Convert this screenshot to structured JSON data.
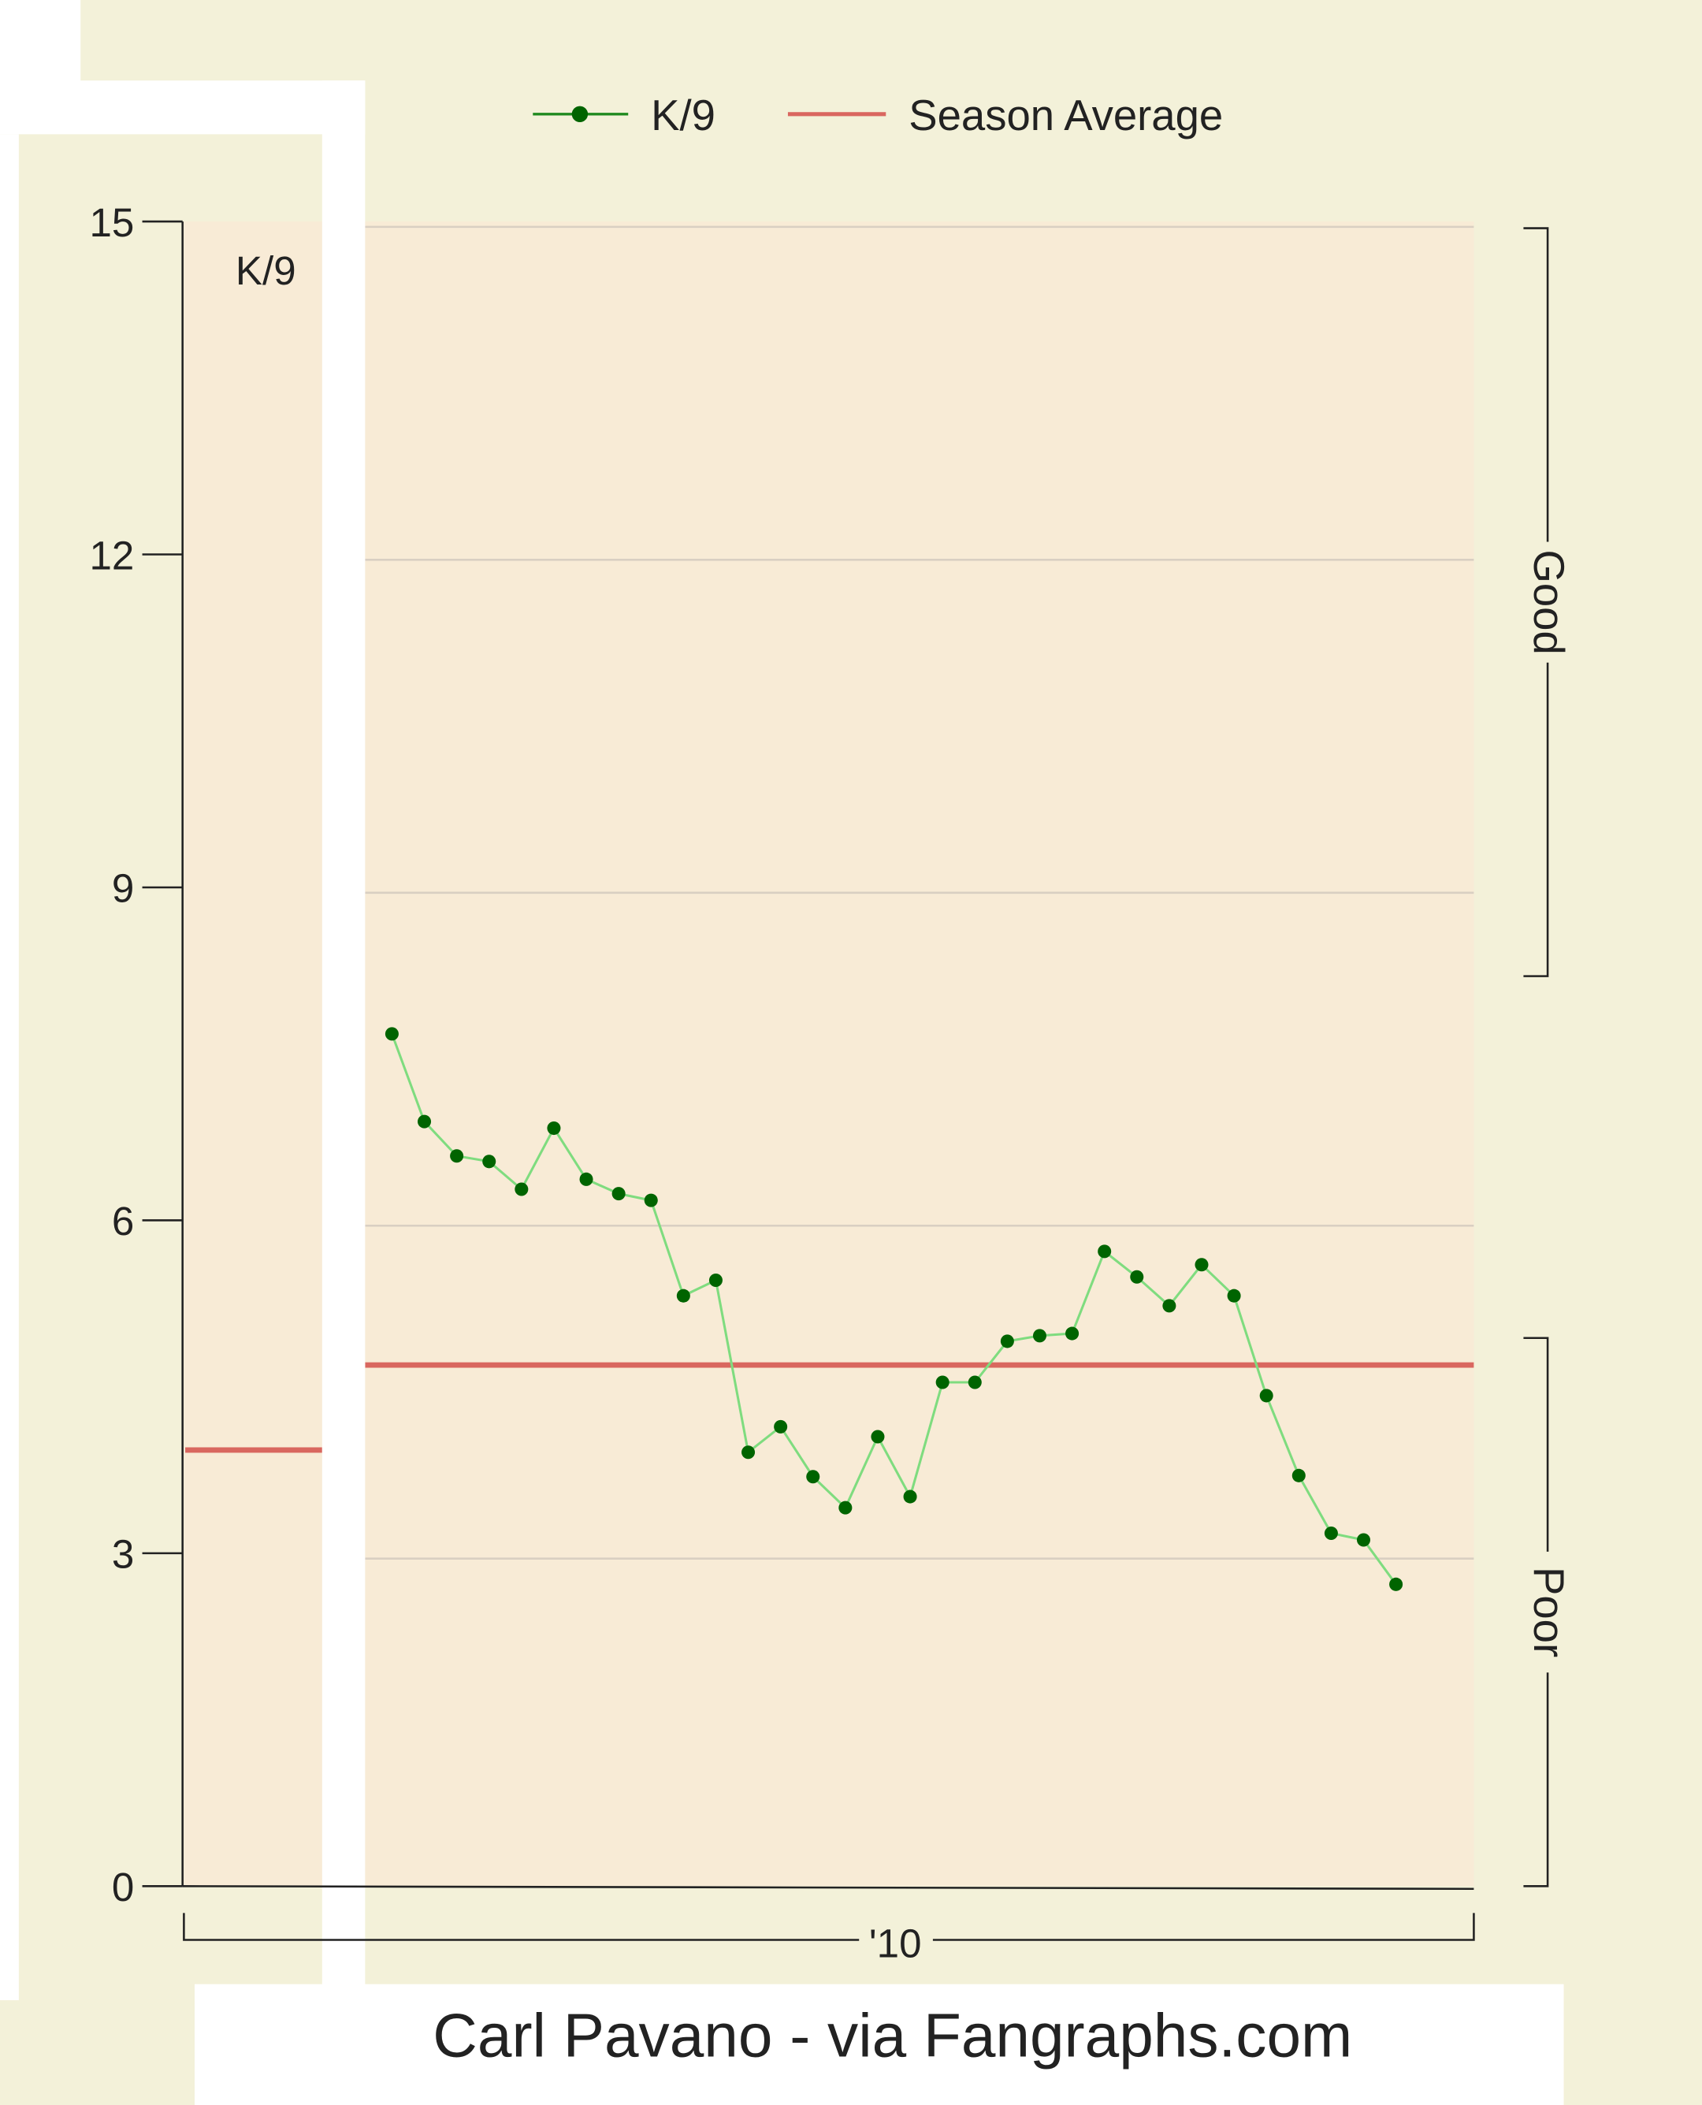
{
  "chart_data": {
    "type": "line",
    "legend": {
      "position": "top",
      "entries": [
        "K/9",
        "Season Average"
      ]
    },
    "ylabel_inset": "K/9",
    "ylim": [
      0,
      15
    ],
    "yticks": [
      "0",
      "3",
      "6",
      "9",
      "12",
      "15"
    ],
    "xtick_label": "'10",
    "grid": true,
    "series": [
      {
        "name": "K/9",
        "color": "#006400",
        "line_color": "#7fdc7f",
        "values": [
          7.68,
          6.89,
          6.58,
          6.53,
          6.28,
          6.83,
          6.37,
          6.24,
          6.18,
          5.32,
          5.46,
          3.91,
          4.14,
          3.69,
          3.41,
          4.05,
          3.51,
          4.54,
          4.54,
          4.91,
          4.96,
          4.98,
          5.72,
          5.49,
          5.23,
          5.6,
          5.32,
          4.42,
          3.7,
          3.18,
          3.12,
          2.72
        ]
      }
    ],
    "season_average": {
      "name": "Season Average",
      "value": 4.72,
      "color": "#d9675f"
    },
    "left_panel_line": {
      "value": 3.93,
      "color": "#d9675f"
    },
    "brackets": [
      {
        "label": "Good",
        "from": 8.2,
        "to": 15
      },
      {
        "label": "Poor",
        "from": 0,
        "to": 5.0
      }
    ],
    "background_color": "#f8ebd6"
  },
  "caption": "Carl Pavano -  via Fangraphs.com"
}
